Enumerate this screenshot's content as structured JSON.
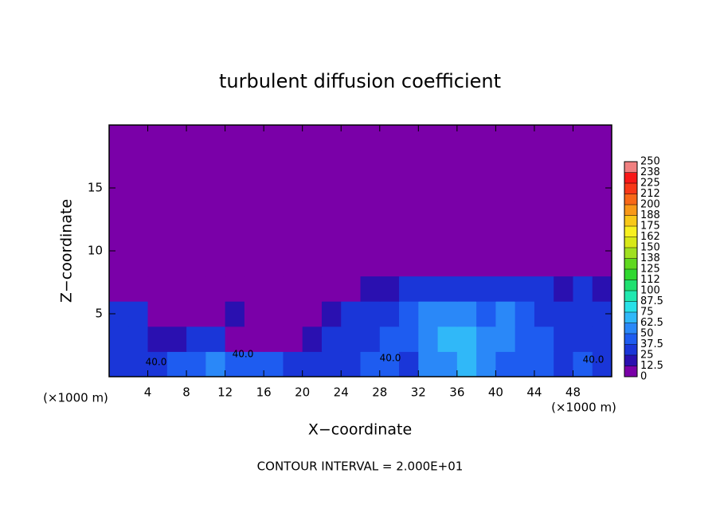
{
  "chart_data": {
    "type": "contour",
    "title": "turbulent diffusion coefficient",
    "x_label": "X−coordinate",
    "y_label": "Z−coordinate",
    "x_unit_left": "(×1000 m)",
    "x_unit_right": "(×1000 m)",
    "footer": "CONTOUR INTERVAL = 2.000E+01",
    "xlim": [
      0,
      52
    ],
    "ylim": [
      0,
      20
    ],
    "xticks": [
      4,
      8,
      12,
      16,
      20,
      24,
      28,
      32,
      36,
      40,
      44,
      48
    ],
    "yticks": [
      5,
      10,
      15
    ],
    "x": [
      1,
      3,
      5,
      7,
      9,
      11,
      13,
      15,
      17,
      19,
      21,
      23,
      25,
      27,
      29,
      31,
      33,
      35,
      37,
      39,
      41,
      43,
      45,
      47,
      49,
      51
    ],
    "z": [
      1,
      3,
      5,
      7,
      9,
      11,
      13,
      15,
      17,
      19
    ],
    "values": [
      [
        35,
        30,
        35,
        40,
        45,
        50,
        45,
        40,
        40,
        35,
        30,
        35,
        35,
        40,
        40,
        35,
        55,
        60,
        65,
        50,
        45,
        40,
        40,
        35,
        40,
        35
      ],
      [
        30,
        30,
        20,
        15,
        25,
        30,
        10,
        10,
        5,
        10,
        20,
        35,
        30,
        35,
        40,
        45,
        55,
        65,
        70,
        50,
        55,
        45,
        40,
        35,
        35,
        35
      ],
      [
        30,
        25,
        10,
        5,
        5,
        10,
        15,
        10,
        5,
        5,
        10,
        20,
        30,
        35,
        35,
        40,
        50,
        55,
        50,
        45,
        50,
        40,
        35,
        30,
        35,
        30
      ],
      [
        5,
        5,
        5,
        5,
        5,
        5,
        5,
        5,
        5,
        5,
        5,
        5,
        10,
        15,
        20,
        25,
        35,
        35,
        30,
        25,
        30,
        30,
        25,
        20,
        25,
        20
      ],
      [
        0,
        0,
        0,
        0,
        0,
        0,
        0,
        0,
        0,
        0,
        0,
        0,
        0,
        0,
        0,
        0,
        5,
        0,
        0,
        0,
        0,
        0,
        0,
        0,
        0,
        0
      ],
      [
        0,
        0,
        0,
        0,
        0,
        0,
        0,
        0,
        0,
        0,
        0,
        0,
        0,
        0,
        0,
        0,
        0,
        0,
        0,
        0,
        0,
        0,
        0,
        0,
        0,
        0
      ],
      [
        0,
        0,
        0,
        0,
        0,
        0,
        0,
        0,
        0,
        0,
        0,
        0,
        0,
        0,
        0,
        0,
        0,
        0,
        0,
        0,
        0,
        0,
        0,
        0,
        0,
        0
      ],
      [
        0,
        0,
        0,
        0,
        0,
        0,
        0,
        0,
        0,
        0,
        0,
        0,
        0,
        0,
        0,
        0,
        0,
        0,
        0,
        0,
        0,
        0,
        0,
        0,
        0,
        0
      ],
      [
        0,
        0,
        0,
        0,
        0,
        0,
        0,
        0,
        0,
        0,
        0,
        0,
        0,
        0,
        0,
        0,
        0,
        0,
        0,
        0,
        0,
        0,
        0,
        0,
        0,
        0
      ],
      [
        0,
        0,
        0,
        0,
        0,
        0,
        0,
        0,
        0,
        0,
        0,
        0,
        0,
        0,
        0,
        0,
        0,
        0,
        0,
        0,
        0,
        0,
        0,
        0,
        0,
        0
      ]
    ],
    "contour_labels": [
      "40.0",
      "40.0",
      "40.0",
      "40.0"
    ],
    "levels": [
      0,
      12.5,
      25,
      37.5,
      50,
      62.5,
      75,
      87.5,
      100,
      {
        "value": 112.5,
        "label": "112"
      },
      125,
      {
        "value": 137.5,
        "label": "138"
      },
      150,
      {
        "value": 162.5,
        "label": "162"
      },
      175,
      {
        "value": 187.5,
        "label": "188"
      },
      200,
      {
        "value": 212.5,
        "label": "212"
      },
      225,
      {
        "value": 237.5,
        "label": "238"
      },
      250
    ],
    "colors": [
      "#7a00a8",
      "#2a10b0",
      "#1a36d8",
      "#1e5cf0",
      "#2a88f8",
      "#30b8f8",
      "#28e0e8",
      "#20e8b0",
      "#20e070",
      "#30d830",
      "#60d820",
      "#a0e020",
      "#d8e818",
      "#f8f020",
      "#f8c818",
      "#f89818",
      "#f86818",
      "#f83818",
      "#f81818",
      "#f08080"
    ]
  }
}
